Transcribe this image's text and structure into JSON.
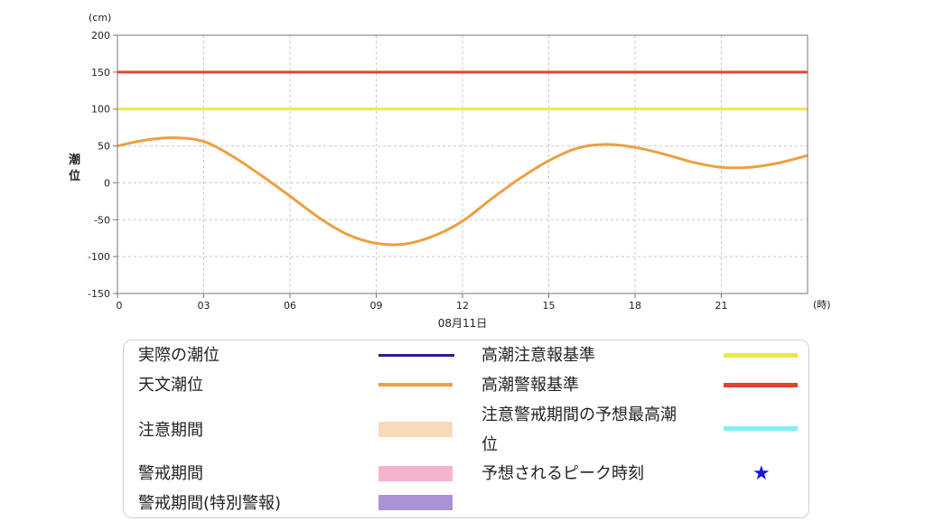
{
  "chart_data": {
    "type": "line",
    "ylabel": "潮位",
    "y_unit": "(cm)",
    "x_unit": "(時)",
    "date_label": "08月11日",
    "ylim": [
      -150,
      200
    ],
    "xlim": [
      0,
      24
    ],
    "yticks": [
      200,
      150,
      100,
      50,
      0,
      -50,
      -100,
      -150
    ],
    "xticks": [
      "0",
      "03",
      "06",
      "09",
      "12",
      "15",
      "18",
      "21"
    ],
    "grid": true,
    "series": [
      {
        "name": "天文潮位",
        "color": "#eba040",
        "x": [
          0,
          1,
          2,
          3,
          4,
          5,
          6,
          7,
          8,
          9,
          10,
          11,
          12,
          13,
          14,
          15,
          16,
          17,
          18,
          19,
          20,
          21,
          22,
          23,
          24
        ],
        "y": [
          50,
          58,
          61,
          56,
          36,
          10,
          -18,
          -47,
          -70,
          -82,
          -83,
          -72,
          -52,
          -22,
          6,
          30,
          47,
          52,
          48,
          39,
          28,
          21,
          21,
          27,
          37
        ]
      },
      {
        "name": "高潮警報基準",
        "color": "#e2452e",
        "constant": 150
      },
      {
        "name": "高潮注意報基準",
        "color": "#ede84a",
        "constant": 100
      }
    ]
  },
  "legend": {
    "actual": {
      "label": "実際の潮位",
      "color": "#2b1c8c"
    },
    "astro": {
      "label": "天文潮位",
      "color": "#eba040"
    },
    "caution_period": {
      "label": "注意期間",
      "color": "#f6dcb6"
    },
    "warning_period": {
      "label": "警戒期間",
      "color": "#f4b3cf"
    },
    "special_period": {
      "label": "警戒期間(特別警報)",
      "color": "#ab91d8"
    },
    "advisory_std": {
      "label": "高潮注意報基準",
      "color": "#ede84a"
    },
    "warning_std": {
      "label": "高潮警報基準",
      "color": "#e2452e"
    },
    "forecast_max_1": "注意警戒期間の予想最高潮",
    "forecast_max_2": "位",
    "forecast_max_color": "#7ff0f4",
    "peak_time": {
      "label": "予想されるピーク時刻",
      "symbol": "★",
      "color": "#1414e6"
    }
  }
}
